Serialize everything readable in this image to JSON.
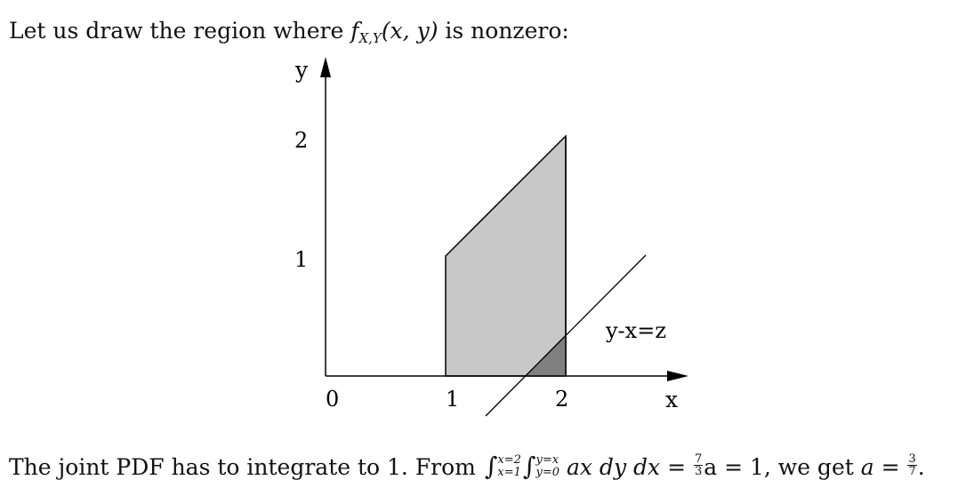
{
  "intro": {
    "text_before": "Let us draw the region where ",
    "f": "f",
    "f_sub": "X,Y",
    "f_args": "(x, y)",
    "text_after": " is nonzero:"
  },
  "figure": {
    "y_axis_label": "y",
    "x_axis_label": "x",
    "origin_label": "0",
    "x_ticks": [
      "1",
      "2"
    ],
    "y_ticks": [
      "1",
      "2"
    ],
    "line_label": "y-x=z",
    "colors": {
      "region": "#c8c8c8",
      "subregion": "#808080",
      "stroke": "#000000"
    }
  },
  "outro": {
    "text_before": "The joint PDF has to integrate to 1. From ",
    "int1_upper": "x=2",
    "int1_lower": "x=1",
    "int2_upper": "y=x",
    "int2_lower": "y=0",
    "integrand": "ax dy dx",
    "eq1": " = ",
    "frac1_num": "7",
    "frac1_den": "3",
    "after_frac1": "a = 1, we get ",
    "a_var": "a",
    "eq2": " = ",
    "frac2_num": "3",
    "frac2_den": "7",
    "end": "."
  }
}
